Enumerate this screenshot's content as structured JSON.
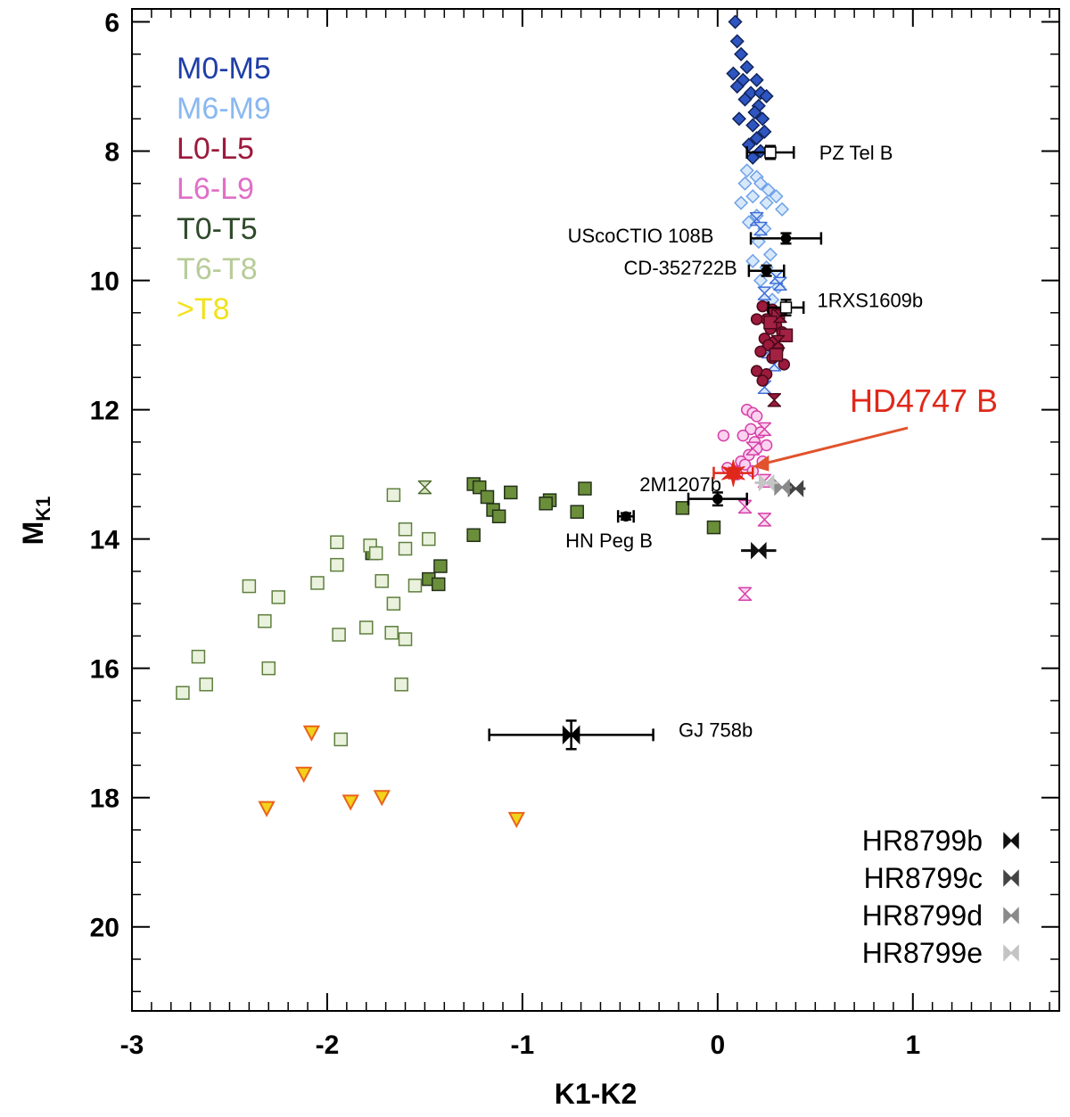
{
  "chart_data": {
    "type": "scatter",
    "xlabel": "K1-K2",
    "ylabel": "M",
    "ylabel_sub": "K1",
    "xlim": [
      -3.0,
      1.75
    ],
    "ylim": [
      21.3,
      5.8
    ],
    "x_ticks": [
      "-3",
      "-2",
      "-1",
      "0",
      "1"
    ],
    "x_tick_values": [
      -3,
      -2,
      -1,
      0,
      1
    ],
    "y_ticks": [
      "6",
      "8",
      "10",
      "12",
      "14",
      "16",
      "18",
      "20"
    ],
    "y_tick_values": [
      6,
      8,
      10,
      12,
      14,
      16,
      18,
      20
    ],
    "legend": [
      {
        "label": "M0-M5",
        "color": "#1f3ea8"
      },
      {
        "label": "M6-M9",
        "color": "#8ab8f0"
      },
      {
        "label": "L0-L5",
        "color": "#9c1a3c"
      },
      {
        "label": "L6-L9",
        "color": "#e06fc8"
      },
      {
        "label": "T0-T5",
        "color": "#2f4a2a"
      },
      {
        "label": "T6-T8",
        "color": "#b8cc98"
      },
      {
        "label": ">T8",
        "color": "#f2e21a"
      }
    ],
    "series": [
      {
        "name": "M0-M5",
        "marker": "diamond-filled",
        "fill": "#2e55c0",
        "stroke": "#10235a",
        "points": [
          [
            0.09,
            6.0
          ],
          [
            0.1,
            6.3
          ],
          [
            0.12,
            6.5
          ],
          [
            0.15,
            6.7
          ],
          [
            0.08,
            6.8
          ],
          [
            0.13,
            6.9
          ],
          [
            0.2,
            6.9
          ],
          [
            0.1,
            7.0
          ],
          [
            0.17,
            7.1
          ],
          [
            0.22,
            7.1
          ],
          [
            0.25,
            7.15
          ],
          [
            0.14,
            7.2
          ],
          [
            0.21,
            7.3
          ],
          [
            0.19,
            7.4
          ],
          [
            0.11,
            7.5
          ],
          [
            0.23,
            7.5
          ],
          [
            0.18,
            7.6
          ],
          [
            0.24,
            7.7
          ],
          [
            0.2,
            7.8
          ],
          [
            0.16,
            7.9
          ],
          [
            0.22,
            8.0
          ],
          [
            0.18,
            8.1
          ]
        ]
      },
      {
        "name": "M6-M9",
        "marker": "diamond-open",
        "fill": "#d8e8fb",
        "stroke": "#6fa2e8",
        "points": [
          [
            0.15,
            8.3
          ],
          [
            0.2,
            8.4
          ],
          [
            0.14,
            8.5
          ],
          [
            0.22,
            8.5
          ],
          [
            0.26,
            8.6
          ],
          [
            0.18,
            8.7
          ],
          [
            0.3,
            8.7
          ],
          [
            0.12,
            8.8
          ],
          [
            0.25,
            8.8
          ],
          [
            0.33,
            8.9
          ],
          [
            0.2,
            9.0
          ],
          [
            0.16,
            9.1
          ],
          [
            0.24,
            9.2
          ],
          [
            0.21,
            9.4
          ],
          [
            0.27,
            9.6
          ],
          [
            0.18,
            9.7
          ],
          [
            0.25,
            9.8
          ],
          [
            0.22,
            10.0
          ],
          [
            0.31,
            10.1
          ],
          [
            0.28,
            10.3
          ]
        ]
      },
      {
        "name": "M6-M9 hourglass",
        "marker": "hourglass-open",
        "fill": "#d8e8fb",
        "stroke": "#3f6fd8",
        "points": [
          [
            0.2,
            9.05
          ],
          [
            0.22,
            9.2
          ],
          [
            0.3,
            9.95
          ],
          [
            0.32,
            10.05
          ],
          [
            0.24,
            10.2
          ],
          [
            0.26,
            11.1
          ],
          [
            0.29,
            11.3
          ],
          [
            0.24,
            11.65
          ]
        ]
      },
      {
        "name": "L0-L5",
        "marker": "circle-filled",
        "fill": "#9c1a3c",
        "stroke": "#4a0a1b",
        "points": [
          [
            0.23,
            10.4
          ],
          [
            0.28,
            10.45
          ],
          [
            0.32,
            10.5
          ],
          [
            0.25,
            10.6
          ],
          [
            0.2,
            10.6
          ],
          [
            0.3,
            10.7
          ],
          [
            0.27,
            10.75
          ],
          [
            0.33,
            10.8
          ],
          [
            0.24,
            10.9
          ],
          [
            0.29,
            10.95
          ],
          [
            0.26,
            11.0
          ],
          [
            0.31,
            11.05
          ],
          [
            0.22,
            11.1
          ],
          [
            0.28,
            11.2
          ],
          [
            0.34,
            11.3
          ],
          [
            0.2,
            11.4
          ],
          [
            0.25,
            11.45
          ],
          [
            0.23,
            11.55
          ]
        ]
      },
      {
        "name": "L0-L5 squares",
        "marker": "square-filled",
        "fill": "#a32244",
        "stroke": "#4a0a1b",
        "points": [
          [
            0.31,
            10.55
          ],
          [
            0.27,
            10.65
          ],
          [
            0.35,
            10.85
          ],
          [
            0.3,
            11.15
          ]
        ]
      },
      {
        "name": "L0-L5 hourglass",
        "marker": "hourglass-filled",
        "fill": "#9c1a3c",
        "stroke": "#4a0a1b",
        "points": [
          [
            0.32,
            10.55
          ],
          [
            0.31,
            10.95
          ],
          [
            0.29,
            11.85
          ]
        ]
      },
      {
        "name": "L6-L9",
        "marker": "circle-open",
        "fill": "#fbd2ef",
        "stroke": "#d63fa8",
        "points": [
          [
            0.15,
            12.0
          ],
          [
            0.18,
            12.05
          ],
          [
            0.2,
            12.1
          ],
          [
            0.17,
            12.3
          ],
          [
            0.22,
            12.35
          ],
          [
            0.13,
            12.4
          ],
          [
            0.19,
            12.5
          ],
          [
            0.2,
            12.6
          ],
          [
            0.25,
            12.55
          ],
          [
            0.16,
            12.7
          ],
          [
            0.12,
            12.8
          ],
          [
            0.23,
            12.8
          ],
          [
            0.14,
            12.85
          ],
          [
            0.05,
            12.9
          ],
          [
            0.09,
            12.95
          ],
          [
            0.18,
            12.95
          ],
          [
            0.1,
            13.0
          ],
          [
            0.03,
            12.4
          ]
        ]
      },
      {
        "name": "L6-L9 hourglass",
        "marker": "hourglass-open",
        "fill": "#fbd2ef",
        "stroke": "#d63fa8",
        "points": [
          [
            0.24,
            12.3
          ],
          [
            0.18,
            12.6
          ],
          [
            0.24,
            13.1
          ],
          [
            0.14,
            13.5
          ],
          [
            0.24,
            13.7
          ],
          [
            0.14,
            14.85
          ]
        ]
      },
      {
        "name": "T0-T5",
        "marker": "square-filled",
        "fill": "#6b8e3a",
        "stroke": "#23321a",
        "points": [
          [
            -1.25,
            13.15
          ],
          [
            -1.22,
            13.2
          ],
          [
            -1.06,
            13.28
          ],
          [
            -0.86,
            13.4
          ],
          [
            -0.68,
            13.22
          ],
          [
            -0.88,
            13.45
          ],
          [
            -1.18,
            13.35
          ],
          [
            -1.15,
            13.55
          ],
          [
            -1.12,
            13.65
          ],
          [
            -0.72,
            13.58
          ],
          [
            -0.18,
            13.52
          ],
          [
            -0.02,
            13.82
          ],
          [
            -1.25,
            13.94
          ],
          [
            -1.42,
            14.42
          ],
          [
            -1.48,
            14.62
          ],
          [
            -1.43,
            14.7
          ],
          [
            -1.77,
            14.22
          ]
        ]
      },
      {
        "name": "T0-T5 hourglass",
        "marker": "hourglass-open",
        "fill": "#d6e4c2",
        "stroke": "#4f6b30",
        "points": [
          [
            -1.5,
            13.2
          ]
        ]
      },
      {
        "name": "T6-T8",
        "marker": "square-open",
        "fill": "#eaf2de",
        "stroke": "#5f7f3e",
        "points": [
          [
            -1.66,
            13.32
          ],
          [
            -1.6,
            13.85
          ],
          [
            -1.78,
            14.1
          ],
          [
            -1.95,
            14.05
          ],
          [
            -2.25,
            14.9
          ],
          [
            -2.4,
            14.73
          ],
          [
            -2.05,
            14.68
          ],
          [
            -1.95,
            14.4
          ],
          [
            -1.6,
            14.15
          ],
          [
            -1.48,
            14.0
          ],
          [
            -1.55,
            14.72
          ],
          [
            -1.72,
            14.65
          ],
          [
            -1.75,
            14.22
          ],
          [
            -1.66,
            15.0
          ],
          [
            -1.94,
            15.48
          ],
          [
            -2.32,
            15.27
          ],
          [
            -1.8,
            15.37
          ],
          [
            -1.67,
            15.45
          ],
          [
            -1.6,
            15.55
          ],
          [
            -2.3,
            16.0
          ],
          [
            -2.62,
            16.25
          ],
          [
            -2.74,
            16.38
          ],
          [
            -2.66,
            15.82
          ],
          [
            -1.62,
            16.25
          ],
          [
            -1.93,
            17.1
          ]
        ]
      },
      {
        "name": ">T8",
        "marker": "triangle-down",
        "fill": "#f2d21a",
        "stroke": "#e8641a",
        "points": [
          [
            -2.08,
            16.98
          ],
          [
            -2.12,
            17.62
          ],
          [
            -1.88,
            18.05
          ],
          [
            -1.72,
            17.98
          ],
          [
            -2.31,
            18.15
          ],
          [
            -1.03,
            18.32
          ]
        ]
      }
    ],
    "labeled_objects": [
      {
        "label": "PZ Tel B",
        "x": 0.27,
        "y": 8.02,
        "xerr": 0.12,
        "yerr": 0.1,
        "marker": "square-open"
      },
      {
        "label": "UScoCTIO 108B",
        "x": 0.35,
        "y": 9.35,
        "xerr": 0.18,
        "yerr": 0.08,
        "marker": "circle-filled"
      },
      {
        "label": "CD-352722B",
        "x": 0.25,
        "y": 9.85,
        "xerr": 0.09,
        "yerr": 0.08,
        "marker": "circle-filled"
      },
      {
        "label": "1RXS1609b",
        "x": 0.35,
        "y": 10.42,
        "xerr": 0.09,
        "yerr": 0.12,
        "marker": "square-open"
      },
      {
        "label": "2M1207b",
        "x": 0.0,
        "y": 13.38,
        "xerr": 0.15,
        "yerr": 0.1,
        "marker": "circle-filled"
      },
      {
        "label": "HN Peg B",
        "x": -0.47,
        "y": 13.65,
        "xerr": 0.04,
        "yerr": 0.05,
        "marker": "circle-filled"
      },
      {
        "label": "GJ 758b",
        "x": -0.75,
        "y": 17.03,
        "xerr": 0.42,
        "yerr": 0.22,
        "marker": "bowtie"
      }
    ],
    "hd4747b": {
      "label": "HD4747 B",
      "x": 0.08,
      "y": 12.98,
      "xerr": 0.1,
      "yerr": 0.08,
      "color": "#e0281a"
    },
    "hr8799": [
      {
        "label": "HR8799b",
        "x": 0.21,
        "y": 14.18,
        "xerr": 0.09,
        "color": "#111111"
      },
      {
        "label": "HR8799c",
        "x": 0.4,
        "y": 13.22,
        "xerr": 0.05,
        "color": "#444444"
      },
      {
        "label": "HR8799d",
        "x": 0.33,
        "y": 13.2,
        "xerr": 0.05,
        "color": "#8a8a8a"
      },
      {
        "label": "HR8799e",
        "x": 0.25,
        "y": 13.13,
        "xerr": 0.06,
        "color": "#c4c4c4"
      }
    ]
  }
}
